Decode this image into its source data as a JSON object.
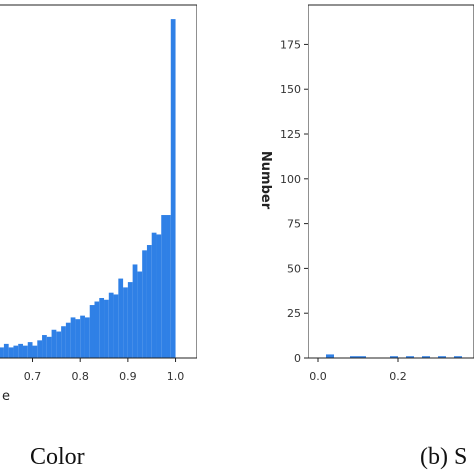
{
  "chart_data": [
    {
      "type": "histogram",
      "color": "#2f80e6",
      "bins": [
        0.63,
        0.64,
        0.65,
        0.66,
        0.67,
        0.68,
        0.69,
        0.7,
        0.71,
        0.72,
        0.73,
        0.74,
        0.75,
        0.76,
        0.77,
        0.78,
        0.79,
        0.8,
        0.81,
        0.82,
        0.83,
        0.84,
        0.85,
        0.86,
        0.87,
        0.88,
        0.89,
        0.9,
        0.91,
        0.92,
        0.93,
        0.94,
        0.95,
        0.96,
        0.97,
        0.98,
        0.99,
        1.0
      ],
      "values": [
        6,
        8,
        6,
        7,
        8,
        7,
        9,
        7,
        10,
        13,
        12,
        16,
        15,
        18,
        20,
        23,
        22,
        24,
        23,
        30,
        32,
        34,
        33,
        37,
        36,
        45,
        40,
        43,
        53,
        49,
        61,
        64,
        71,
        70,
        81,
        81,
        192
      ],
      "xlim": [
        0.6255,
        1.045
      ],
      "ylim": [
        0,
        200
      ],
      "xticks": [
        0.7,
        0.8,
        0.9,
        {
          "value": 1,
          "label": "1.0"
        }
      ],
      "xlabel": "e",
      "caption": "Color"
    },
    {
      "type": "histogram",
      "color": "#2f80e6",
      "bins": [
        0,
        0.02,
        0.04,
        0.06,
        0.08,
        0.1,
        0.12,
        0.14,
        0.16,
        0.18,
        0.2,
        0.22,
        0.24,
        0.26,
        0.28,
        0.3,
        0.32,
        0.34,
        0.36,
        0.38
      ],
      "values": [
        0,
        2,
        0,
        0,
        1,
        1,
        0,
        0,
        0,
        1,
        0,
        1,
        0,
        1,
        0,
        1,
        0,
        1,
        0
      ],
      "xlim": [
        -0.025,
        0.39
      ],
      "ylim": [
        0,
        197
      ],
      "xticks": [
        {
          "value": 0,
          "label": "0.0"
        },
        0.2
      ],
      "yticks": [
        0,
        25,
        50,
        75,
        100,
        125,
        150,
        175
      ],
      "ylabel": "Number",
      "caption": "(b) S"
    }
  ]
}
